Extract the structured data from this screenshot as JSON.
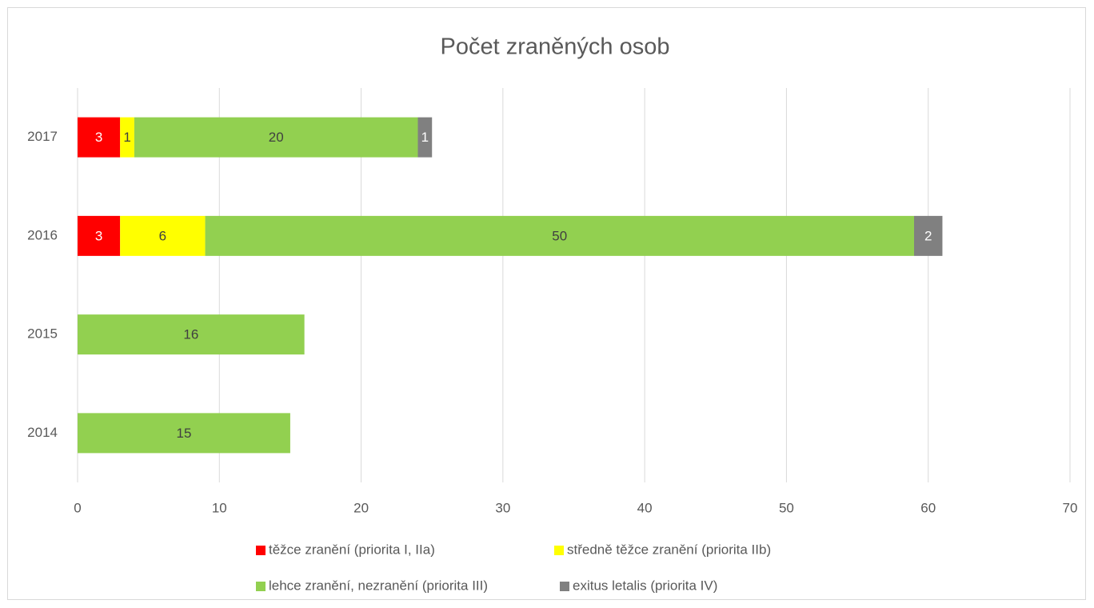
{
  "chart_data": {
    "type": "stacked-bar-horizontal",
    "title": "Počet zraněných osob",
    "categories": [
      "2014",
      "2015",
      "2016",
      "2017"
    ],
    "series": [
      {
        "name": "těžce zranění (priorita I, IIa)",
        "color": "#ff0000",
        "values": [
          null,
          null,
          3,
          3
        ]
      },
      {
        "name": "středně těžce zranění (priorita IIb)",
        "color": "#ffff00",
        "values": [
          null,
          null,
          6,
          1
        ]
      },
      {
        "name": "lehce zranění, nezranění (priorita III)",
        "color": "#92d050",
        "values": [
          15,
          16,
          50,
          20
        ]
      },
      {
        "name": "exitus letalis (priorita IV)",
        "color": "#808080",
        "values": [
          null,
          null,
          2,
          1
        ]
      }
    ],
    "xlim": [
      0,
      70
    ],
    "xticks": [
      0,
      10,
      20,
      30,
      40,
      50,
      60,
      70
    ],
    "grid": true,
    "legend": "bottom"
  }
}
